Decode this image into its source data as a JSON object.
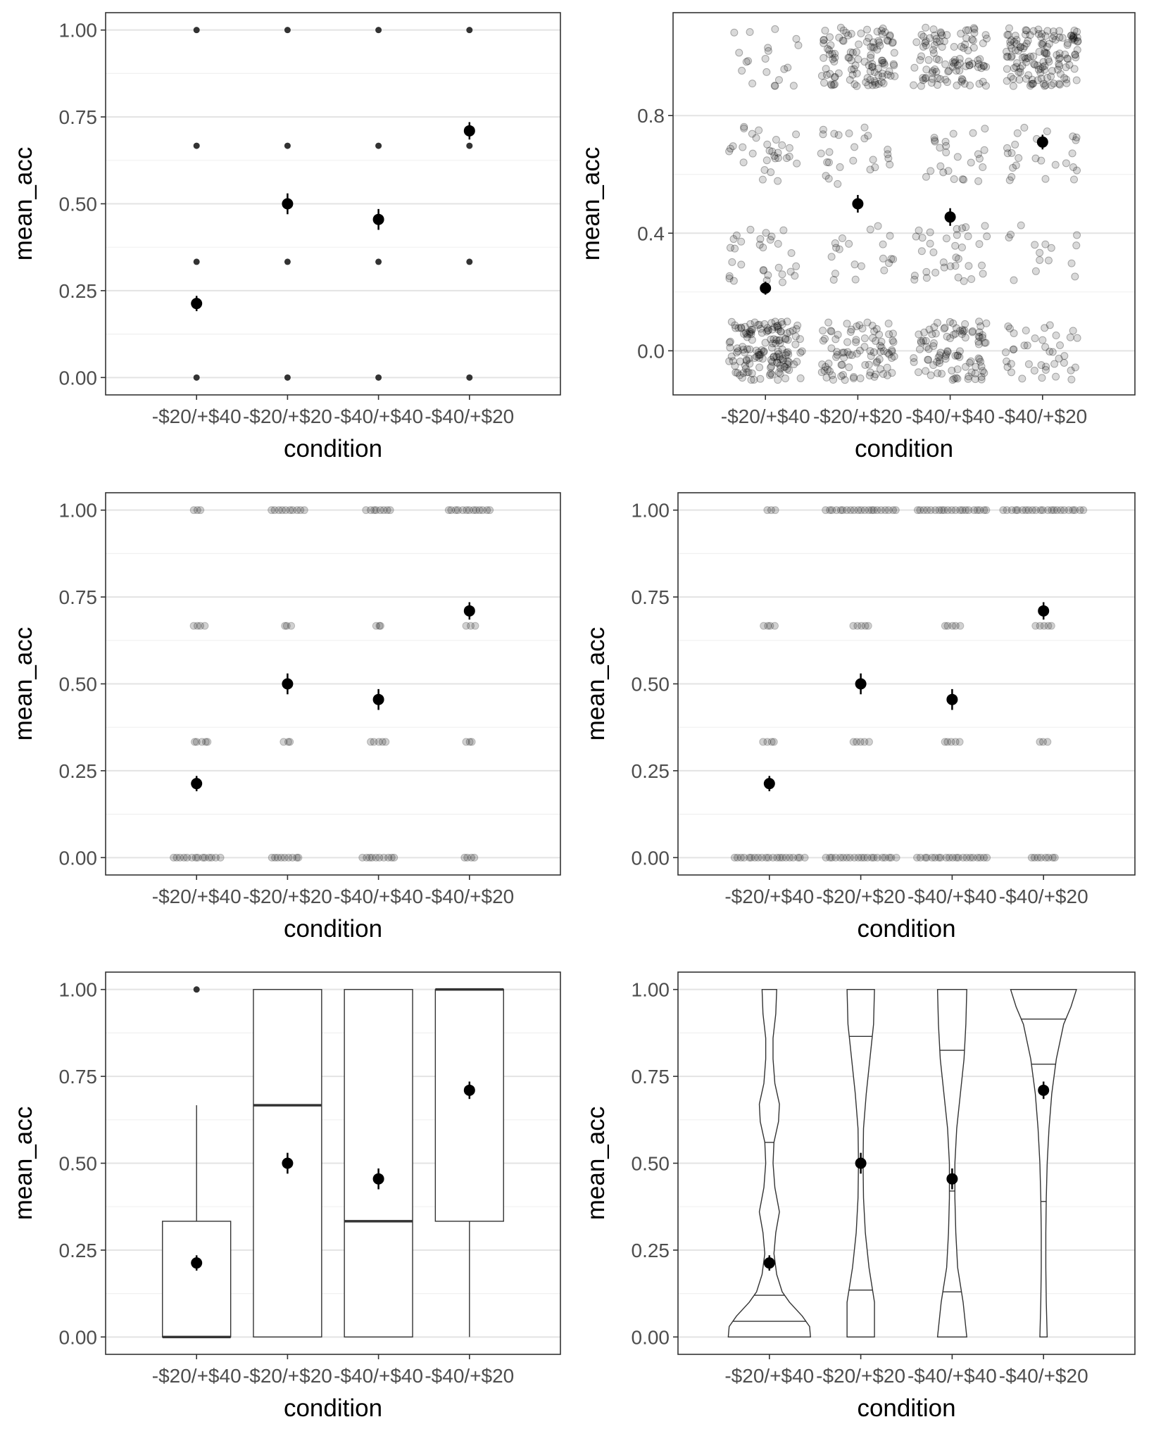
{
  "chart_data": [
    {
      "id": "p1",
      "type": "scatter",
      "variant": "points",
      "xlabel": "condition",
      "ylabel": "mean_acc",
      "categories": [
        "-$20/+$40",
        "-$20/+$20",
        "-$40/+$40",
        "-$40/+$20"
      ],
      "y_ticks": [
        "0.00",
        "0.25",
        "0.50",
        "0.75",
        "1.00"
      ],
      "ylim": [
        -0.05,
        1.05
      ],
      "raw_levels": [
        0,
        0.333,
        0.667,
        1
      ],
      "mean": [
        0.213,
        0.5,
        0.455,
        0.71
      ],
      "se": [
        0.022,
        0.03,
        0.03,
        0.025
      ],
      "grid": true,
      "theme": "bw"
    },
    {
      "id": "p2",
      "type": "scatter",
      "variant": "jitter",
      "xlabel": "condition",
      "ylabel": "mean_acc",
      "categories": [
        "-$20/+$40",
        "-$20/+$20",
        "-$40/+$40",
        "-$40/+$20"
      ],
      "y_ticks": [
        "0.0",
        "0.4",
        "0.8"
      ],
      "ylim": [
        -0.15,
        1.15
      ],
      "raw_levels": [
        0,
        0.333,
        0.667,
        1
      ],
      "counts": {
        "0": [
          150,
          90,
          95,
          40
        ],
        "0.333": [
          30,
          20,
          35,
          15
        ],
        "0.667": [
          30,
          25,
          25,
          25
        ],
        "1": [
          20,
          110,
          100,
          140
        ]
      },
      "mean": [
        0.213,
        0.5,
        0.455,
        0.71
      ],
      "se": [
        0.022,
        0.03,
        0.03,
        0.025
      ],
      "grid": true,
      "theme": "bw"
    },
    {
      "id": "p3",
      "type": "scatter",
      "variant": "horizontal-jitter",
      "xlabel": "condition",
      "ylabel": "mean_acc",
      "categories": [
        "-$20/+$40",
        "-$20/+$20",
        "-$40/+$40",
        "-$40/+$20"
      ],
      "y_ticks": [
        "0.00",
        "0.25",
        "0.50",
        "0.75",
        "1.00"
      ],
      "ylim": [
        -0.05,
        1.05
      ],
      "raw_levels": [
        0,
        0.333,
        0.667,
        1
      ],
      "spread": {
        "0": [
          [
            -0.27,
            0.27
          ],
          [
            -0.2,
            0.15
          ],
          [
            -0.2,
            0.2
          ],
          [
            -0.08,
            0.08
          ]
        ],
        "0.333": [
          [
            -0.05,
            0.15
          ],
          [
            -0.05,
            0.05
          ],
          [
            -0.1,
            0.1
          ],
          [
            -0.05,
            0.05
          ]
        ],
        "0.667": [
          [
            -0.05,
            0.1
          ],
          [
            -0.05,
            0.05
          ],
          [
            -0.05,
            0.05
          ],
          [
            -0.05,
            0.08
          ]
        ],
        "1": [
          [
            -0.05,
            0.05
          ],
          [
            -0.2,
            0.2
          ],
          [
            -0.15,
            0.15
          ],
          [
            -0.25,
            0.25
          ]
        ]
      },
      "mean": [
        0.213,
        0.5,
        0.455,
        0.71
      ],
      "se": [
        0.022,
        0.03,
        0.03,
        0.025
      ],
      "grid": true,
      "theme": "bw"
    },
    {
      "id": "p4",
      "type": "scatter",
      "variant": "horizontal-jitter",
      "xlabel": "condition",
      "ylabel": "mean_acc",
      "categories": [
        "-$20/+$40",
        "-$20/+$20",
        "-$40/+$40",
        "-$40/+$20"
      ],
      "y_ticks": [
        "0.00",
        "0.25",
        "0.50",
        "0.75",
        "1.00"
      ],
      "ylim": [
        -0.05,
        1.05
      ],
      "raw_levels": [
        0,
        0.333,
        0.667,
        1
      ],
      "spread": {
        "0": [
          [
            -0.4,
            0.4
          ],
          [
            -0.4,
            0.4
          ],
          [
            -0.4,
            0.4
          ],
          [
            -0.15,
            0.15
          ]
        ],
        "0.333": [
          [
            -0.08,
            0.08
          ],
          [
            -0.1,
            0.1
          ],
          [
            -0.1,
            0.1
          ],
          [
            -0.05,
            0.05
          ]
        ],
        "0.667": [
          [
            -0.08,
            0.08
          ],
          [
            -0.1,
            0.1
          ],
          [
            -0.1,
            0.1
          ],
          [
            -0.1,
            0.1
          ]
        ],
        "1": [
          [
            -0.05,
            0.08
          ],
          [
            -0.4,
            0.4
          ],
          [
            -0.4,
            0.4
          ],
          [
            -0.45,
            0.45
          ]
        ]
      },
      "mean": [
        0.213,
        0.5,
        0.455,
        0.71
      ],
      "se": [
        0.022,
        0.03,
        0.03,
        0.025
      ],
      "grid": true,
      "theme": "bw"
    },
    {
      "id": "p5",
      "type": "box",
      "xlabel": "condition",
      "ylabel": "mean_acc",
      "categories": [
        "-$20/+$40",
        "-$20/+$20",
        "-$40/+$40",
        "-$40/+$20"
      ],
      "y_ticks": [
        "0.00",
        "0.25",
        "0.50",
        "0.75",
        "1.00"
      ],
      "ylim": [
        -0.05,
        1.05
      ],
      "boxes": [
        {
          "lower": 0,
          "q1": 0,
          "median": 0,
          "q3": 0.333,
          "upper": 0.667,
          "outliers": [
            1
          ]
        },
        {
          "lower": 0,
          "q1": 0,
          "median": 0.667,
          "q3": 1,
          "upper": 1,
          "outliers": []
        },
        {
          "lower": 0,
          "q1": 0,
          "median": 0.333,
          "q3": 1,
          "upper": 1,
          "outliers": []
        },
        {
          "lower": 0,
          "q1": 0.333,
          "median": 1,
          "q3": 1,
          "upper": 1,
          "outliers": []
        }
      ],
      "mean": [
        0.213,
        0.5,
        0.455,
        0.71
      ],
      "se": [
        0.022,
        0.03,
        0.03,
        0.025
      ],
      "grid": true,
      "theme": "bw"
    },
    {
      "id": "p6",
      "type": "violin",
      "xlabel": "condition",
      "ylabel": "mean_acc",
      "categories": [
        "-$20/+$40",
        "-$20/+$20",
        "-$40/+$40",
        "-$40/+$20"
      ],
      "y_ticks": [
        "0.00",
        "0.25",
        "0.50",
        "0.75",
        "1.00"
      ],
      "ylim": [
        -0.05,
        1.05
      ],
      "violins": [
        {
          "profile": [
            [
              0,
              0.45
            ],
            [
              0.03,
              0.44
            ],
            [
              0.06,
              0.36
            ],
            [
              0.1,
              0.22
            ],
            [
              0.13,
              0.14
            ],
            [
              0.18,
              0.08
            ],
            [
              0.24,
              0.05
            ],
            [
              0.3,
              0.07
            ],
            [
              0.36,
              0.11
            ],
            [
              0.43,
              0.06
            ],
            [
              0.5,
              0.04
            ],
            [
              0.56,
              0.05
            ],
            [
              0.62,
              0.1
            ],
            [
              0.67,
              0.11
            ],
            [
              0.73,
              0.06
            ],
            [
              0.8,
              0.04
            ],
            [
              0.86,
              0.04
            ],
            [
              0.93,
              0.07
            ],
            [
              1,
              0.08
            ]
          ],
          "quantiles": [
            0.045,
            0.12,
            0.56
          ]
        },
        {
          "profile": [
            [
              0,
              0.15
            ],
            [
              0.1,
              0.15
            ],
            [
              0.2,
              0.09
            ],
            [
              0.3,
              0.05
            ],
            [
              0.4,
              0.03
            ],
            [
              0.5,
              0.025
            ],
            [
              0.6,
              0.03
            ],
            [
              0.7,
              0.06
            ],
            [
              0.8,
              0.1
            ],
            [
              0.9,
              0.14
            ],
            [
              1,
              0.15
            ]
          ],
          "quantiles": [
            0.135,
            0.5,
            0.865
          ]
        },
        {
          "profile": [
            [
              0,
              0.16
            ],
            [
              0.1,
              0.12
            ],
            [
              0.2,
              0.06
            ],
            [
              0.3,
              0.04
            ],
            [
              0.4,
              0.03
            ],
            [
              0.5,
              0.03
            ],
            [
              0.6,
              0.05
            ],
            [
              0.7,
              0.09
            ],
            [
              0.8,
              0.13
            ],
            [
              0.9,
              0.15
            ],
            [
              1,
              0.16
            ]
          ],
          "quantiles": [
            0.13,
            0.42,
            0.825
          ]
        },
        {
          "profile": [
            [
              0,
              0.04
            ],
            [
              0.1,
              0.03
            ],
            [
              0.2,
              0.025
            ],
            [
              0.3,
              0.025
            ],
            [
              0.4,
              0.03
            ],
            [
              0.5,
              0.04
            ],
            [
              0.6,
              0.06
            ],
            [
              0.7,
              0.09
            ],
            [
              0.8,
              0.14
            ],
            [
              0.9,
              0.22
            ],
            [
              0.95,
              0.3
            ],
            [
              1,
              0.36
            ]
          ],
          "quantiles": [
            0.39,
            0.785,
            0.915
          ]
        }
      ],
      "mean": [
        0.213,
        0.5,
        0.455,
        0.71
      ],
      "se": [
        0.022,
        0.03,
        0.03,
        0.025
      ],
      "grid": true,
      "theme": "bw"
    }
  ]
}
